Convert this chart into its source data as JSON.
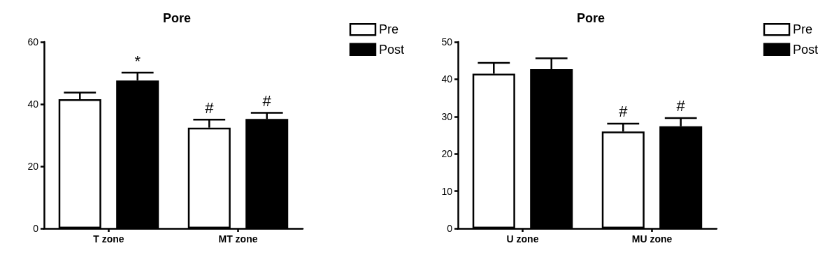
{
  "chart_data": [
    {
      "type": "bar",
      "title": "Pore",
      "categories": [
        "T zone",
        "MT zone"
      ],
      "series": [
        {
          "name": "Pre",
          "color": "#ffffff",
          "values": [
            41.6,
            32.4
          ],
          "errors": [
            [
              41.6,
              43.7
            ],
            [
              32.4,
              35.0
            ]
          ],
          "value_labels": [
            null,
            "#"
          ]
        },
        {
          "name": "Post",
          "color": "#000000",
          "values": [
            47.6,
            35.2
          ],
          "errors": [
            [
              47.6,
              50.1
            ],
            [
              35.2,
              37.2
            ]
          ],
          "value_labels": [
            "*",
            "#"
          ]
        }
      ],
      "ylim": [
        0,
        60
      ],
      "yticks": [
        0,
        20,
        40,
        60
      ],
      "grid": false,
      "legend": "top right"
    },
    {
      "type": "bar",
      "title": "Pore",
      "categories": [
        "U zone",
        "MU zone"
      ],
      "series": [
        {
          "name": "Pre",
          "color": "#ffffff",
          "values": [
            41.5,
            26.0
          ],
          "errors": [
            [
              41.5,
              44.4
            ],
            [
              26.0,
              28.1
            ]
          ],
          "value_labels": [
            null,
            "#"
          ]
        },
        {
          "name": "Post",
          "color": "#000000",
          "values": [
            42.7,
            27.4
          ],
          "errors": [
            [
              42.7,
              45.6
            ],
            [
              27.4,
              29.6
            ]
          ],
          "value_labels": [
            null,
            "#"
          ]
        }
      ],
      "ylim": [
        0,
        50
      ],
      "yticks": [
        0,
        10,
        20,
        30,
        40,
        50
      ],
      "grid": false,
      "legend": "top right"
    }
  ]
}
